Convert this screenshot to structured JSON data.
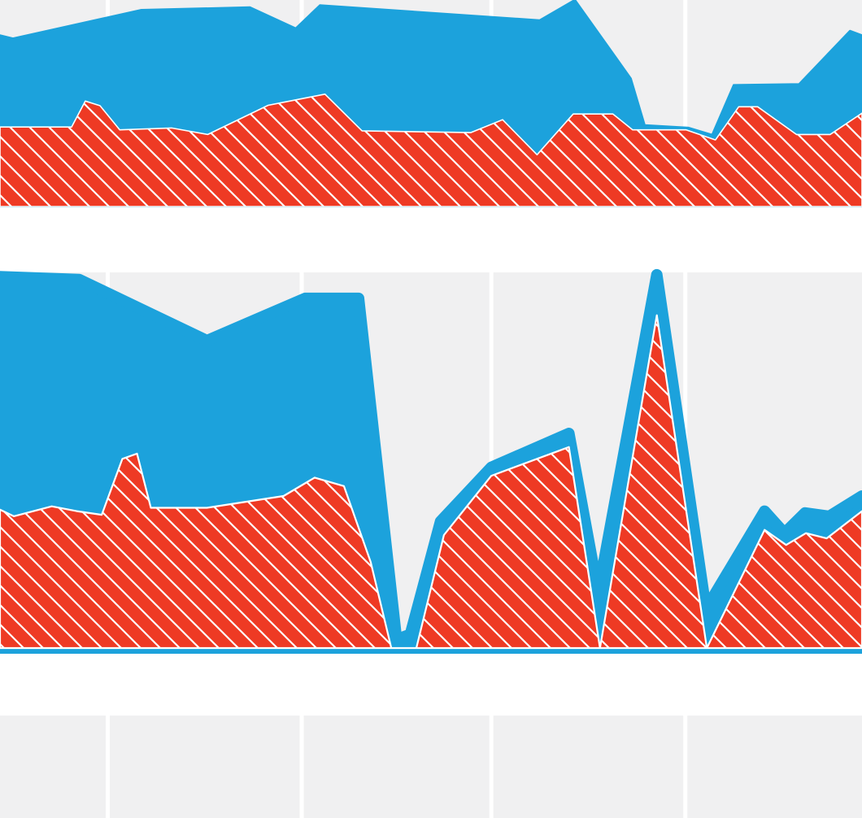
{
  "colors": {
    "background": "#ffffff",
    "panel": "#f0f0f1",
    "gridline": "#ffffff",
    "series_a": "#1ca2dc",
    "series_b": "#ee3a24",
    "hatch": "#ffffff"
  },
  "chart_data": [
    {
      "type": "area",
      "stacked": false,
      "grid": true,
      "title": "",
      "xlabel": "",
      "ylabel": "",
      "xlim": [
        0,
        100
      ],
      "ylim": [
        0,
        100
      ],
      "xgrid": [
        12.5,
        35,
        57,
        79.5
      ],
      "series": [
        {
          "key": "blue",
          "style": "solid",
          "x": [
            0,
            1.5,
            16.4,
            29,
            34.3,
            37.1,
            62.6,
            66.7,
            73.2,
            74.8,
            79.9,
            82.6,
            85.1,
            92.7,
            98.6,
            100
          ],
          "y": [
            84.7,
            83.1,
            97.2,
            98.5,
            88.1,
            99.5,
            92.1,
            102.2,
            63.3,
            40.3,
            39.0,
            35.5,
            60.1,
            60.6,
            86.9,
            84.7
          ]
        },
        {
          "key": "red",
          "style": "hatched",
          "x": [
            0,
            8.3,
            9.9,
            11.6,
            13.9,
            19.9,
            24.1,
            31.1,
            37.7,
            42.0,
            54.6,
            58.3,
            62.3,
            66.5,
            71.1,
            73.4,
            79.6,
            83.0,
            85.7,
            87.9,
            92.4,
            96.3,
            100
          ],
          "y": [
            39.3,
            39.3,
            52.1,
            49.8,
            37.9,
            38.8,
            35.6,
            50.0,
            55.5,
            37.4,
            36.5,
            42.9,
            25.6,
            45.7,
            45.7,
            37.9,
            37.9,
            32.9,
            49.3,
            49.3,
            35.6,
            35.6,
            46.1
          ]
        }
      ]
    },
    {
      "type": "area",
      "stacked": false,
      "grid": true,
      "title": "",
      "xlabel": "",
      "ylabel": "",
      "xlim": [
        0,
        100
      ],
      "ylim": [
        0,
        100
      ],
      "xgrid": [
        12.5,
        35,
        57,
        79.5
      ],
      "series": [
        {
          "key": "blue",
          "style": "solid",
          "x": [
            0,
            9.2,
            24.0,
            35.4,
            41.6,
            46.0,
            47.6,
            51.1,
            57.0,
            66.0,
            69.4,
            76.2,
            81.9,
            88.7,
            91.0,
            93.4,
            96.2,
            100
          ],
          "y": [
            100.9,
            100.1,
            83.5,
            95.0,
            95.0,
            2.3,
            3.7,
            34.4,
            49.1,
            58.3,
            15.1,
            101.4,
            10.6,
            37.2,
            31.2,
            36.7,
            35.8,
            41.3
          ]
        },
        {
          "key": "red",
          "style": "hatched",
          "x": [
            0,
            1.6,
            6.0,
            8.9,
            11.8,
            14.2,
            15.9,
            17.5,
            24.0,
            32.9,
            36.5,
            39.9,
            43.0,
            45.4,
            48.3,
            51.5,
            57.0,
            66.0,
            69.6,
            76.2,
            82.0,
            88.7,
            91.2,
            93.5,
            95.9,
            100
          ],
          "y": [
            37.6,
            35.8,
            38.5,
            37.2,
            36.2,
            51.4,
            52.8,
            38.1,
            38.1,
            41.3,
            46.3,
            44.0,
            23.4,
            0,
            0,
            30.7,
            46.8,
            54.6,
            0,
            90.4,
            0,
            32.1,
            28.0,
            31.2,
            29.8,
            37.2
          ]
        }
      ]
    }
  ]
}
